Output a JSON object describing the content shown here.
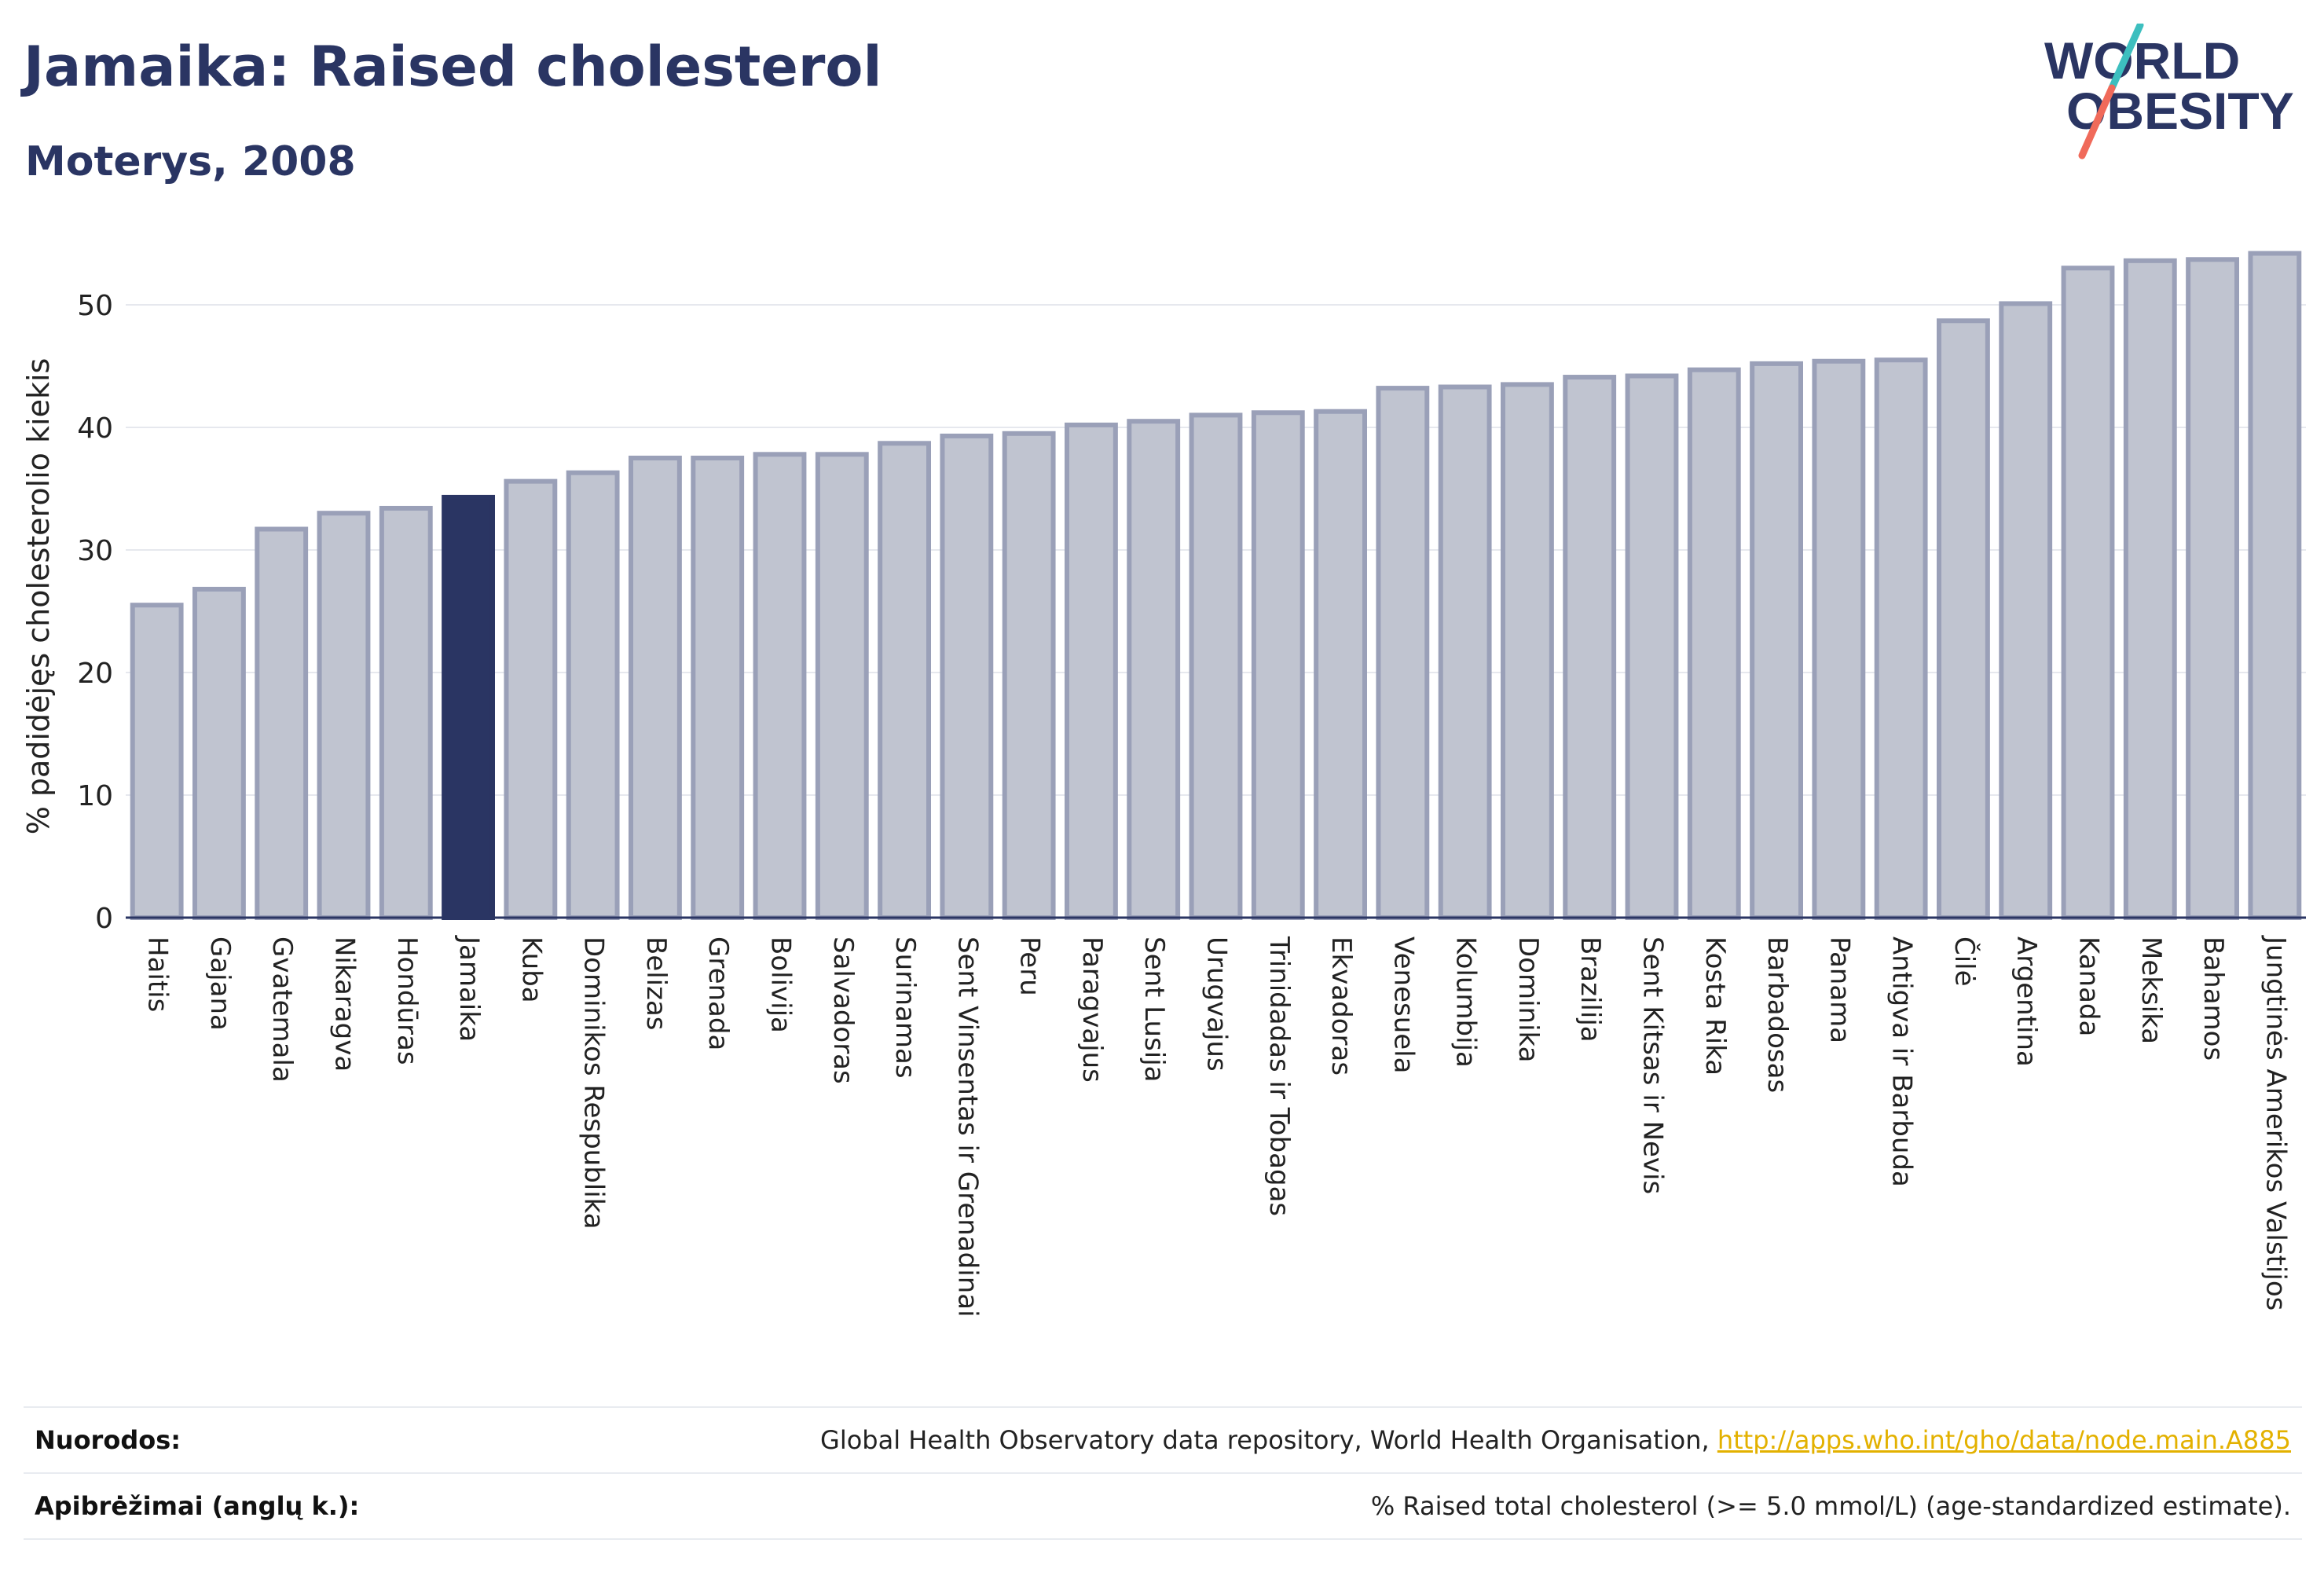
{
  "header": {
    "title": "Jamaika: Raised cholesterol",
    "subtitle": "Moterys, 2008"
  },
  "logo": {
    "line1": "WORLD",
    "line2": "OBESITY"
  },
  "colors": {
    "bar": "#c0c4d0",
    "bar_border": "#9aa0b8",
    "highlight": "#2a3563",
    "axis_text": "#222222"
  },
  "chart_data": {
    "type": "bar",
    "ylabel": "% padidėjęs cholesterolio kiekis",
    "ylim": [
      0,
      55
    ],
    "yticks": [
      0,
      10,
      20,
      30,
      40,
      50
    ],
    "grid": true,
    "highlight": "Jamaika",
    "categories": [
      "Haitis",
      "Gajana",
      "Gvatemala",
      "Nikaragva",
      "Hondūras",
      "Jamaika",
      "Kuba",
      "Dominikos Respublika",
      "Belizas",
      "Grenada",
      "Bolivija",
      "Salvadoras",
      "Surinamas",
      "Sent Vinsentas ir Grenadinai",
      "Peru",
      "Paragvajus",
      "Sent Lusija",
      "Urugvajus",
      "Trinidadas ir Tobagas",
      "Ekvadoras",
      "Venesuela",
      "Kolumbija",
      "Dominika",
      "Brazilija",
      "Sent Kitsas ir Nevis",
      "Kosta Rika",
      "Barbadosas",
      "Panama",
      "Antigva ir Barbuda",
      "Čilė",
      "Argentina",
      "Kanada",
      "Meksika",
      "Bahamos",
      "Jungtinės Amerikos Valstijos"
    ],
    "values": [
      25.5,
      26.8,
      31.7,
      33.0,
      33.4,
      34.3,
      35.6,
      36.3,
      37.5,
      37.5,
      37.8,
      37.8,
      38.7,
      39.3,
      39.5,
      40.2,
      40.5,
      41.0,
      41.2,
      41.3,
      43.2,
      43.3,
      43.5,
      44.1,
      44.2,
      44.7,
      45.2,
      45.4,
      45.5,
      48.7,
      50.1,
      53.0,
      53.6,
      53.7,
      54.2
    ]
  },
  "sources": {
    "references_label": "Nuorodos:",
    "references_text": "Global Health Observatory data repository, World Health Organisation, ",
    "references_link": "http://apps.who.int/gho/data/node.main.A885",
    "definitions_label": "Apibrėžimai (anglų k.):",
    "definitions_text": "% Raised total cholesterol (>= 5.0 mmol/L) (age-standardized estimate)."
  }
}
